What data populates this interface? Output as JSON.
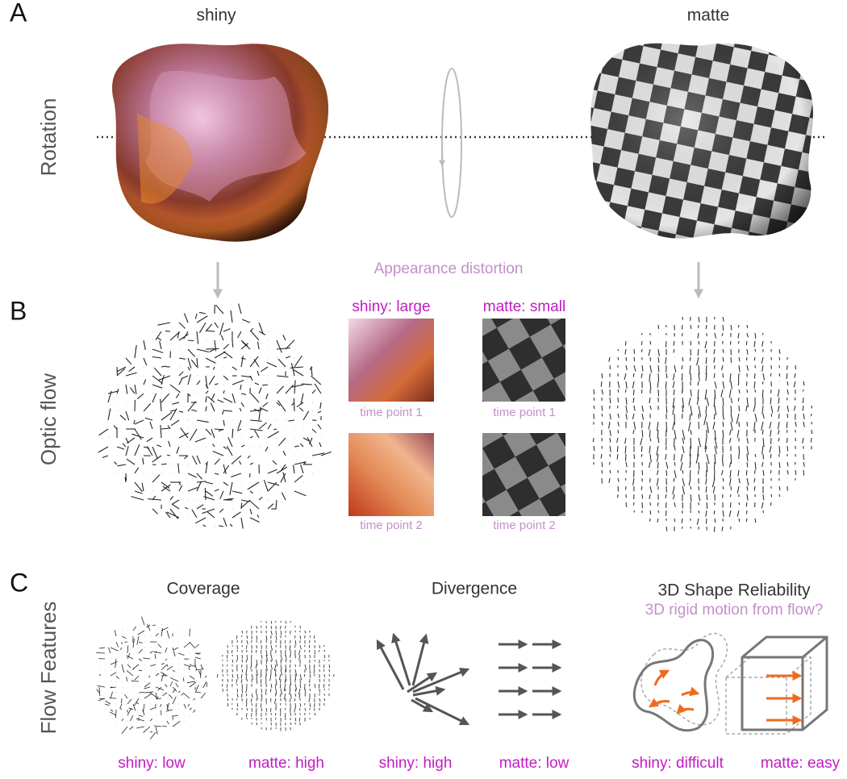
{
  "panels": {
    "a": {
      "label": "A",
      "row_label": "Rotation",
      "left_title": "shiny",
      "right_title": "matte",
      "caption": "Appearance distortion"
    },
    "b": {
      "label": "B",
      "row_label": "Optic flow",
      "shiny_heading": "shiny: large",
      "matte_heading": "matte: small",
      "shiny_tp1": "time point 1",
      "shiny_tp2": "time point 2",
      "matte_tp1": "time point 1",
      "matte_tp2": "time point 2"
    },
    "c": {
      "label": "C",
      "row_label": "Flow Features",
      "features": [
        {
          "title": "Coverage",
          "shiny": "shiny: low",
          "matte": "matte: high"
        },
        {
          "title": "Divergence",
          "shiny": "shiny: high",
          "matte": "matte: low"
        },
        {
          "title": "3D Shape Reliability",
          "question": "3D rigid motion from flow?",
          "shiny": "shiny: difficult",
          "matte": "matte: easy"
        }
      ]
    }
  }
}
